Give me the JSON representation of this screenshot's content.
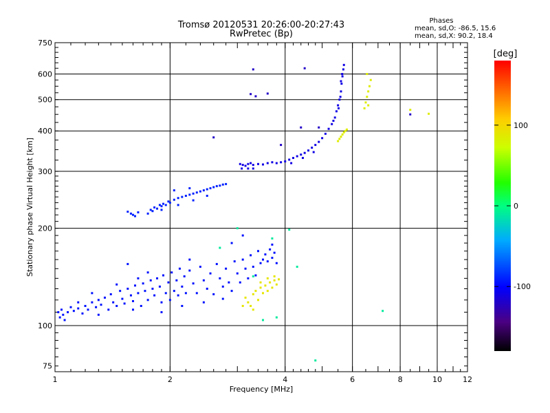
{
  "chart_data": {
    "type": "scatter",
    "title_line1": "Tromsø 20120531 20:26:00-20:27:43",
    "title_line2": "RwPretec (Bp)",
    "phases_box": {
      "heading": "Phases",
      "line_o": "mean, sd,O: -86.5, 15.6",
      "line_x": "mean, sd,X:  90.2, 18.4"
    },
    "xlabel": "Frequency [MHz]",
    "ylabel": "Stationary phase Virtual Height [km]",
    "x_scale": "log",
    "y_scale": "log",
    "xlim": [
      1,
      12
    ],
    "ylim": [
      72,
      750
    ],
    "x_ticks": [
      {
        "value": 1,
        "label": "1"
      },
      {
        "value": 2,
        "label": "2"
      },
      {
        "value": 4,
        "label": "4"
      },
      {
        "value": 6,
        "label": "6"
      },
      {
        "value": 8,
        "label": "8"
      },
      {
        "value": 10,
        "label": "10"
      },
      {
        "value": 12,
        "label": "12"
      }
    ],
    "x_gridlines": [
      2,
      4,
      6,
      8,
      10
    ],
    "y_ticks": [
      {
        "value": 75,
        "label": "75"
      },
      {
        "value": 100,
        "label": "100"
      },
      {
        "value": 200,
        "label": "200"
      },
      {
        "value": 300,
        "label": "300"
      },
      {
        "value": 400,
        "label": "400"
      },
      {
        "value": 500,
        "label": "500"
      },
      {
        "value": 600,
        "label": "600"
      },
      {
        "value": 750,
        "label": "750"
      }
    ],
    "y_gridlines": [
      100,
      200,
      300,
      400,
      500,
      600
    ],
    "grid": true,
    "colorbar": {
      "label": "[deg]",
      "range": [
        -180,
        180
      ],
      "ticks": [
        {
          "value": 100,
          "label": "100"
        },
        {
          "value": 0,
          "label": "0"
        },
        {
          "value": -100,
          "label": "-100"
        }
      ]
    },
    "series": [
      {
        "role": "E-region O-mode echoes",
        "phase_deg": -95,
        "points": [
          [
            1.02,
            110
          ],
          [
            1.03,
            106
          ],
          [
            1.04,
            112
          ],
          [
            1.05,
            108
          ],
          [
            1.06,
            104
          ],
          [
            1.08,
            110
          ],
          [
            1.1,
            114
          ],
          [
            1.12,
            111
          ],
          [
            1.15,
            113
          ],
          [
            1.18,
            109
          ],
          [
            1.2,
            115
          ],
          [
            1.22,
            112
          ],
          [
            1.25,
            118
          ],
          [
            1.28,
            114
          ],
          [
            1.3,
            120
          ],
          [
            1.32,
            116
          ],
          [
            1.35,
            122
          ],
          [
            1.38,
            112
          ],
          [
            1.4,
            125
          ],
          [
            1.42,
            118
          ],
          [
            1.45,
            115
          ],
          [
            1.48,
            128
          ],
          [
            1.5,
            121
          ],
          [
            1.52,
            117
          ],
          [
            1.55,
            130
          ],
          [
            1.58,
            124
          ],
          [
            1.6,
            119
          ],
          [
            1.62,
            133
          ],
          [
            1.65,
            126
          ],
          [
            1.68,
            115
          ],
          [
            1.7,
            135
          ],
          [
            1.72,
            128
          ],
          [
            1.75,
            120
          ],
          [
            1.78,
            138
          ],
          [
            1.8,
            130
          ],
          [
            1.82,
            124
          ],
          [
            1.85,
            140
          ],
          [
            1.88,
            132
          ],
          [
            1.9,
            118
          ],
          [
            1.92,
            143
          ],
          [
            1.95,
            126
          ],
          [
            1.98,
            136
          ],
          [
            2.0,
            120
          ],
          [
            2.02,
            146
          ],
          [
            2.05,
            128
          ],
          [
            2.08,
            138
          ],
          [
            2.1,
            124
          ],
          [
            2.12,
            150
          ],
          [
            2.15,
            132
          ],
          [
            2.18,
            142
          ],
          [
            2.2,
            126
          ],
          [
            2.25,
            148
          ],
          [
            2.3,
            135
          ],
          [
            2.35,
            126
          ],
          [
            2.4,
            152
          ],
          [
            2.45,
            138
          ],
          [
            2.5,
            130
          ],
          [
            2.55,
            145
          ],
          [
            2.6,
            125
          ],
          [
            2.65,
            155
          ],
          [
            2.7,
            140
          ],
          [
            2.75,
            132
          ],
          [
            2.8,
            150
          ],
          [
            2.85,
            136
          ],
          [
            2.9,
            128
          ],
          [
            2.95,
            158
          ],
          [
            3.0,
            145
          ],
          [
            3.05,
            136
          ],
          [
            3.1,
            160
          ],
          [
            3.15,
            150
          ],
          [
            3.2,
            140
          ],
          [
            3.25,
            165
          ],
          [
            3.3,
            152
          ],
          [
            3.35,
            143
          ],
          [
            3.4,
            170
          ],
          [
            3.45,
            156
          ],
          [
            3.5,
            160
          ],
          [
            3.55,
            166
          ],
          [
            3.6,
            158
          ],
          [
            3.65,
            172
          ],
          [
            3.7,
            162
          ],
          [
            3.75,
            168
          ],
          [
            3.8,
            156
          ],
          [
            1.3,
            108
          ],
          [
            1.6,
            112
          ],
          [
            1.9,
            110
          ],
          [
            2.15,
            115
          ],
          [
            2.45,
            118
          ],
          [
            2.75,
            121
          ],
          [
            1.45,
            134
          ],
          [
            1.75,
            146
          ],
          [
            2.25,
            160
          ],
          [
            1.55,
            155
          ],
          [
            3.7,
            178
          ],
          [
            2.9,
            180
          ],
          [
            3.1,
            190
          ],
          [
            1.25,
            126
          ],
          [
            1.15,
            118
          ],
          [
            1.65,
            140
          ]
        ]
      },
      {
        "role": "E-region X-mode echoes",
        "phase_deg": 90,
        "points": [
          [
            3.15,
            122
          ],
          [
            3.2,
            118
          ],
          [
            3.25,
            115
          ],
          [
            3.3,
            125
          ],
          [
            3.35,
            128
          ],
          [
            3.4,
            120
          ],
          [
            3.45,
            131
          ],
          [
            3.5,
            126
          ],
          [
            3.55,
            133
          ],
          [
            3.6,
            128
          ],
          [
            3.65,
            136
          ],
          [
            3.7,
            131
          ],
          [
            3.75,
            138
          ],
          [
            3.8,
            134
          ],
          [
            3.85,
            139
          ],
          [
            3.3,
            112
          ],
          [
            3.6,
            140
          ],
          [
            3.75,
            142
          ],
          [
            3.45,
            136
          ],
          [
            3.1,
            115
          ]
        ]
      },
      {
        "role": "E-region scattered mixed echoes",
        "phase_deg": -10,
        "points": [
          [
            3.0,
            200
          ],
          [
            3.7,
            186
          ],
          [
            2.7,
            174
          ],
          [
            3.3,
            142
          ],
          [
            3.5,
            104
          ],
          [
            3.8,
            106
          ],
          [
            4.3,
            152
          ],
          [
            7.2,
            111
          ],
          [
            4.1,
            198
          ],
          [
            4.8,
            78
          ]
        ]
      },
      {
        "role": "F1-region O-mode echoes",
        "phase_deg": -90,
        "points": [
          [
            1.55,
            225
          ],
          [
            1.58,
            222
          ],
          [
            1.6,
            220
          ],
          [
            1.62,
            218
          ],
          [
            1.65,
            224
          ],
          [
            1.75,
            222
          ],
          [
            1.78,
            228
          ],
          [
            1.8,
            226
          ],
          [
            1.82,
            232
          ],
          [
            1.85,
            230
          ],
          [
            1.88,
            236
          ],
          [
            1.9,
            234
          ],
          [
            1.92,
            238
          ],
          [
            1.95,
            236
          ],
          [
            1.98,
            242
          ],
          [
            2.0,
            240
          ],
          [
            2.05,
            245
          ],
          [
            2.1,
            248
          ],
          [
            2.15,
            250
          ],
          [
            2.2,
            252
          ],
          [
            2.25,
            254
          ],
          [
            2.3,
            256
          ],
          [
            2.35,
            258
          ],
          [
            2.4,
            260
          ],
          [
            2.45,
            262
          ],
          [
            2.5,
            264
          ],
          [
            2.55,
            266
          ],
          [
            2.6,
            268
          ],
          [
            2.65,
            270
          ],
          [
            2.7,
            271
          ],
          [
            2.75,
            273
          ],
          [
            2.8,
            274
          ],
          [
            1.9,
            228
          ],
          [
            2.1,
            236
          ],
          [
            2.3,
            244
          ],
          [
            2.5,
            252
          ],
          [
            2.05,
            262
          ],
          [
            2.25,
            266
          ]
        ]
      },
      {
        "role": "F2-region O-mode trace",
        "phase_deg": -110,
        "points": [
          [
            3.05,
            316
          ],
          [
            3.1,
            314
          ],
          [
            3.15,
            312
          ],
          [
            3.2,
            316
          ],
          [
            3.25,
            318
          ],
          [
            3.3,
            314
          ],
          [
            3.4,
            316
          ],
          [
            3.5,
            315
          ],
          [
            3.6,
            318
          ],
          [
            3.7,
            320
          ],
          [
            3.8,
            318
          ],
          [
            3.9,
            320
          ],
          [
            4.0,
            322
          ],
          [
            4.1,
            326
          ],
          [
            4.2,
            330
          ],
          [
            4.3,
            334
          ],
          [
            4.4,
            338
          ],
          [
            4.5,
            342
          ],
          [
            4.6,
            348
          ],
          [
            4.7,
            355
          ],
          [
            4.8,
            362
          ],
          [
            4.9,
            370
          ],
          [
            5.0,
            380
          ],
          [
            5.1,
            392
          ],
          [
            5.2,
            406
          ],
          [
            5.3,
            420
          ],
          [
            5.4,
            440
          ],
          [
            5.45,
            460
          ],
          [
            5.5,
            480
          ],
          [
            5.55,
            500
          ],
          [
            5.6,
            530
          ],
          [
            5.62,
            560
          ],
          [
            5.65,
            590
          ],
          [
            5.68,
            620
          ],
          [
            5.7,
            640
          ],
          [
            5.58,
            510
          ],
          [
            5.6,
            570
          ],
          [
            5.64,
            600
          ],
          [
            5.52,
            470
          ],
          [
            5.35,
            430
          ],
          [
            3.08,
            306
          ],
          [
            3.2,
            306
          ],
          [
            3.3,
            306
          ],
          [
            4.15,
            318
          ],
          [
            4.45,
            330
          ],
          [
            4.75,
            344
          ]
        ]
      },
      {
        "role": "F2-region X-mode trace",
        "phase_deg": 85,
        "points": [
          [
            5.5,
            372
          ],
          [
            5.55,
            378
          ],
          [
            5.6,
            384
          ],
          [
            5.65,
            390
          ],
          [
            5.7,
            396
          ],
          [
            5.75,
            400
          ],
          [
            5.8,
            404
          ],
          [
            6.45,
            470
          ],
          [
            6.5,
            490
          ],
          [
            6.55,
            510
          ],
          [
            6.6,
            530
          ],
          [
            6.65,
            550
          ],
          [
            6.7,
            575
          ],
          [
            6.55,
            600
          ],
          [
            6.6,
            480
          ],
          [
            8.5,
            465
          ],
          [
            9.5,
            452
          ]
        ]
      },
      {
        "role": "Scattered high-altitude echoes",
        "phase_deg": -120,
        "points": [
          [
            3.3,
            620
          ],
          [
            3.25,
            520
          ],
          [
            3.35,
            512
          ],
          [
            3.6,
            522
          ],
          [
            3.9,
            362
          ],
          [
            4.5,
            625
          ],
          [
            4.4,
            410
          ],
          [
            4.9,
            410
          ],
          [
            2.6,
            382
          ],
          [
            8.5,
            450
          ]
        ]
      }
    ]
  }
}
